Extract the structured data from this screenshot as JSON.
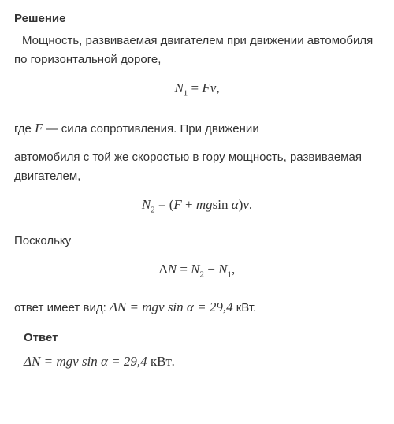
{
  "solution": {
    "heading": "Решение",
    "para1": "Мощность, развиваемая двигателем при движении автомобиля по горизонтальной дороге,",
    "formula1_lhs": "N",
    "formula1_sub": "1",
    "formula1_eq": " = ",
    "formula1_rhs": "Fv",
    "formula1_end": ",",
    "para2_pre": "где ",
    "para2_F": "F",
    "para2_post": " — сила сопротивления. При движении",
    "para2_line2": "автомобиля с той же скоростью в гору мощность, развиваемая двигателем,",
    "formula2_lhs": "N",
    "formula2_sub": "2",
    "formula2_eq": " = (",
    "formula2_F": "F",
    "formula2_plus": " + ",
    "formula2_mg": "mg",
    "formula2_sin": "sin ",
    "formula2_alpha": "α",
    "formula2_close": ")",
    "formula2_v": "v",
    "formula2_end": ".",
    "since": "Поскольку",
    "formula3_delta": "Δ",
    "formula3_N": "N",
    "formula3_eq": " = ",
    "formula3_N2": "N",
    "formula3_sub2": "2",
    "formula3_minus": " − ",
    "formula3_N1": "N",
    "formula3_sub1": "1",
    "formula3_end": ",",
    "answer_text_pre": "ответ имеет вид: ",
    "answer_inline_delta": "Δ",
    "answer_inline_N": "N",
    "answer_inline_eq": " = ",
    "answer_inline_mgv": "mgv",
    "answer_inline_sin": " sin ",
    "answer_inline_alpha": "α",
    "answer_inline_eq2": " = ",
    "answer_inline_val": "29,4",
    "answer_inline_unit": " кВт",
    "answer_inline_end": "."
  },
  "answer": {
    "heading": "Ответ",
    "delta": "Δ",
    "N": "N",
    "eq": " = ",
    "mgv": "mgv",
    "sin": " sin ",
    "alpha": "α",
    "eq2": " = ",
    "val": "29,4",
    "unit": " кВт",
    "end": "."
  }
}
